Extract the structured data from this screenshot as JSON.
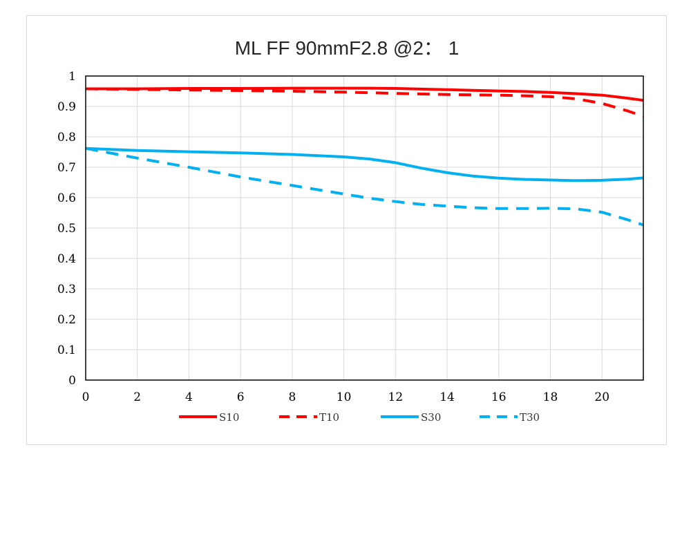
{
  "chart_data": {
    "type": "line",
    "title": "ML FF 90mmF2.8 @2： 1",
    "xlabel": "",
    "ylabel": "",
    "xlim": [
      0,
      21.6
    ],
    "ylim": [
      0,
      1
    ],
    "x_ticks": [
      0,
      2,
      4,
      6,
      8,
      10,
      12,
      14,
      16,
      18,
      20
    ],
    "y_ticks": [
      0,
      0.1,
      0.2,
      0.3,
      0.4,
      0.5,
      0.6,
      0.7,
      0.8,
      0.9,
      1
    ],
    "x_tick_labels": [
      "0",
      "2",
      "4",
      "6",
      "8",
      "10",
      "12",
      "14",
      "16",
      "18",
      "20"
    ],
    "y_tick_labels": [
      "0",
      "0.1",
      "0.2",
      "0.3",
      "0.4",
      "0.5",
      "0.6",
      "0.7",
      "0.8",
      "0.9",
      "1"
    ],
    "grid": true,
    "legend_position": "bottom",
    "x": [
      0,
      2,
      4,
      6,
      8,
      10,
      11,
      12,
      13,
      14,
      15,
      16,
      17,
      18,
      19,
      20,
      21,
      21.6
    ],
    "series": [
      {
        "name": "S10",
        "color": "#ff0000",
        "dash": "solid",
        "values": [
          0.958,
          0.958,
          0.959,
          0.959,
          0.96,
          0.96,
          0.96,
          0.959,
          0.957,
          0.955,
          0.953,
          0.951,
          0.949,
          0.946,
          0.942,
          0.937,
          0.927,
          0.92
        ]
      },
      {
        "name": "T10",
        "color": "#ff0000",
        "dash": "dashed",
        "values": [
          0.958,
          0.956,
          0.954,
          0.952,
          0.95,
          0.947,
          0.945,
          0.943,
          0.941,
          0.939,
          0.938,
          0.937,
          0.935,
          0.932,
          0.925,
          0.91,
          0.885,
          0.868
        ]
      },
      {
        "name": "S30",
        "color": "#00b0f0",
        "dash": "solid",
        "values": [
          0.762,
          0.755,
          0.751,
          0.747,
          0.742,
          0.734,
          0.727,
          0.715,
          0.697,
          0.682,
          0.671,
          0.664,
          0.66,
          0.658,
          0.656,
          0.657,
          0.661,
          0.665
        ]
      },
      {
        "name": "T30",
        "color": "#00b0f0",
        "dash": "dashed",
        "values": [
          0.762,
          0.73,
          0.7,
          0.668,
          0.64,
          0.612,
          0.598,
          0.587,
          0.578,
          0.572,
          0.567,
          0.564,
          0.564,
          0.565,
          0.563,
          0.552,
          0.527,
          0.51
        ]
      }
    ]
  }
}
